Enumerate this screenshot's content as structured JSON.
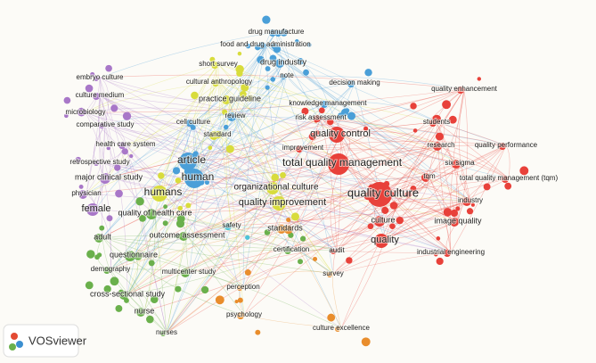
{
  "nodes": [
    {
      "label": "drug manufacture"
    },
    {
      "label": "food and drug administration"
    },
    {
      "label": "drug industry"
    },
    {
      "label": "note"
    },
    {
      "label": "short survey"
    },
    {
      "label": "cultural anthropology"
    },
    {
      "label": "decision making"
    },
    {
      "label": "quality enhancement"
    },
    {
      "label": "embryo culture"
    },
    {
      "label": "culture medium"
    },
    {
      "label": "practice guideline"
    },
    {
      "label": "knowledge management"
    },
    {
      "label": "microbiology"
    },
    {
      "label": "review"
    },
    {
      "label": "risk assessment"
    },
    {
      "label": "cell culture"
    },
    {
      "label": "comparative study"
    },
    {
      "label": "students"
    },
    {
      "label": "quality control"
    },
    {
      "label": "standard"
    },
    {
      "label": "health care system"
    },
    {
      "label": "improvement"
    },
    {
      "label": "research"
    },
    {
      "label": "quality performance"
    },
    {
      "label": "article"
    },
    {
      "label": "total quality management"
    },
    {
      "label": "six sigma"
    },
    {
      "label": "retrospective study"
    },
    {
      "label": "human"
    },
    {
      "label": "organizational culture"
    },
    {
      "label": "tqm"
    },
    {
      "label": "total quality management (tqm)"
    },
    {
      "label": "quality culture"
    },
    {
      "label": "major clinical study"
    },
    {
      "label": "humans"
    },
    {
      "label": "physician"
    },
    {
      "label": "industry"
    },
    {
      "label": "quality improvement"
    },
    {
      "label": "female"
    },
    {
      "label": "quality of health care"
    },
    {
      "label": "culture"
    },
    {
      "label": "safety"
    },
    {
      "label": "image quality"
    },
    {
      "label": "standards"
    },
    {
      "label": "adult"
    },
    {
      "label": "outcome assessment"
    },
    {
      "label": "quality"
    },
    {
      "label": "certification"
    },
    {
      "label": "audit"
    },
    {
      "label": "industrial engineering"
    },
    {
      "label": "questionnaire"
    },
    {
      "label": "demography"
    },
    {
      "label": "multicenter study"
    },
    {
      "label": "survey"
    },
    {
      "label": "perception"
    },
    {
      "label": "cross-sectional study"
    },
    {
      "label": "nurse"
    },
    {
      "label": "psychology"
    },
    {
      "label": "culture excellence"
    },
    {
      "label": "nurses"
    }
  ],
  "logo": "VOSviewer"
}
